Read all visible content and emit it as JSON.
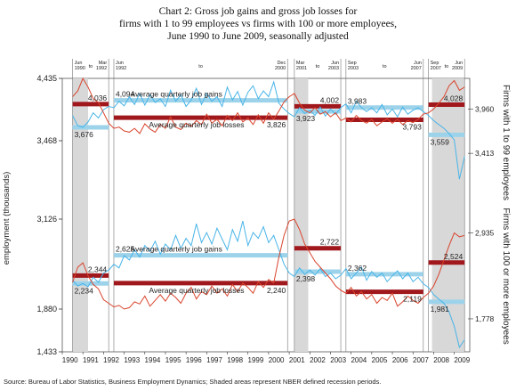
{
  "title": {
    "line1": "Chart 2: Gross job gains and gross job losses for",
    "line2": "firms with 1 to 99 employees vs firms with 100 or more employees,",
    "line3": "June 1990 to June 2009, seasonally adjusted"
  },
  "source": "Source: Bureau of Labor Statistics, Business Employment Dynamics; Shaded areas represent NBER defined recession periods.",
  "colors": {
    "gains": "#48b4e8",
    "losses": "#d9442c",
    "gains_avg": "#9dd3ea",
    "losses_avg": "#a0171c",
    "recession": "#d8d8d8"
  },
  "chart_data": {
    "type": "line",
    "ylabel": "employment (thousands)",
    "xlim": [
      1990.0,
      2009.75
    ],
    "ylim": [
      1433,
      4435
    ],
    "y_ticks": [
      1433,
      1880,
      3126,
      3468,
      4435
    ],
    "x_ticks": [
      "1990",
      "1991",
      "1992",
      "1993",
      "1994",
      "1995",
      "1996",
      "1997",
      "1998",
      "1999",
      "2000",
      "2001",
      "2002",
      "2003",
      "2004",
      "2005",
      "2006",
      "2007",
      "2008",
      "2009"
    ],
    "recessions": [
      [
        1990.5,
        1991.25
      ],
      [
        2001.25,
        2001.92
      ],
      [
        2007.92,
        2009.5
      ]
    ],
    "period_labels": [
      {
        "from": "Jun 1990",
        "to": "Mar 1992",
        "t0": 1990.5,
        "t1": 1992.25
      },
      {
        "from": "Jun 1992",
        "to": "Dec 2000",
        "t0": 1992.5,
        "t1": 2000.92
      },
      {
        "from": "Mar 2001",
        "to": "Jun 2003",
        "t0": 2001.25,
        "t1": 2003.5
      },
      {
        "from": "Sep 2003",
        "to": "Jun 2007",
        "t0": 2003.75,
        "t1": 2007.5
      },
      {
        "from": "Sep 2007",
        "to": "Jun 2009",
        "t0": 2007.75,
        "t1": 2009.5
      }
    ],
    "to_word": "to",
    "panels": [
      {
        "name": "Firms with 1 to 99 employees",
        "gains_label": "Average quarterly job gains",
        "losses_label": "Average quarterly job losses",
        "gains": {
          "x": [
            1990.5,
            1990.75,
            1991.0,
            1991.25,
            1991.5,
            1991.75,
            1992.0,
            1992.25,
            1992.5,
            1992.75,
            1993.0,
            1993.25,
            1993.5,
            1993.75,
            1994.0,
            1994.25,
            1994.5,
            1994.75,
            1995.0,
            1995.25,
            1995.5,
            1995.75,
            1996.0,
            1996.25,
            1996.5,
            1996.75,
            1997.0,
            1997.25,
            1997.5,
            1997.75,
            1998.0,
            1998.25,
            1998.5,
            1998.75,
            1999.0,
            1999.25,
            1999.5,
            1999.75,
            2000.0,
            2000.25,
            2000.5,
            2000.75,
            2001.0,
            2001.25,
            2001.5,
            2001.75,
            2002.0,
            2002.25,
            2002.5,
            2002.75,
            2003.0,
            2003.25,
            2003.5,
            2003.75,
            2004.0,
            2004.25,
            2004.5,
            2004.75,
            2005.0,
            2005.25,
            2005.5,
            2005.75,
            2006.0,
            2006.25,
            2006.5,
            2006.75,
            2007.0,
            2007.25,
            2007.5,
            2007.75,
            2008.0,
            2008.25,
            2008.5,
            2008.75,
            2009.0,
            2009.25,
            2009.5
          ],
          "y": [
            3860,
            3700,
            3676,
            3760,
            3900,
            3820,
            3950,
            4000,
            3980,
            4080,
            4010,
            4150,
            4030,
            4200,
            4020,
            4180,
            4060,
            4120,
            4000,
            4250,
            4080,
            4180,
            4000,
            4100,
            4280,
            4030,
            4200,
            4080,
            4150,
            4000,
            4300,
            4100,
            4230,
            4020,
            4220,
            4320,
            4120,
            4240,
            4150,
            4380,
            4050,
            3960,
            3890,
            3840,
            3980,
            3890,
            3940,
            3860,
            3990,
            3850,
            3960,
            3880,
            3980,
            4040,
            3900,
            4080,
            3980,
            3920,
            3980,
            3900,
            4030,
            3870,
            3960,
            3840,
            3990,
            3880,
            3940,
            3980,
            3920,
            3860,
            3780,
            3720,
            3660,
            3580,
            3480,
            3300,
            3400
          ]
        },
        "losses": {
          "x": [
            1990.5,
            1990.75,
            1991.0,
            1991.25,
            1991.5,
            1991.75,
            1992.0,
            1992.25,
            1992.5,
            1992.75,
            1993.0,
            1993.25,
            1993.5,
            1993.75,
            1994.0,
            1994.25,
            1994.5,
            1994.75,
            1995.0,
            1995.25,
            1995.5,
            1995.75,
            1996.0,
            1996.25,
            1996.5,
            1996.75,
            1997.0,
            1997.25,
            1997.5,
            1997.75,
            1998.0,
            1998.25,
            1998.5,
            1998.75,
            1999.0,
            1999.25,
            1999.5,
            1999.75,
            2000.0,
            2000.25,
            2000.5,
            2000.75,
            2001.0,
            2001.25,
            2001.5,
            2001.75,
            2002.0,
            2002.25,
            2002.5,
            2002.75,
            2003.0,
            2003.25,
            2003.5,
            2003.75,
            2004.0,
            2004.25,
            2004.5,
            2004.75,
            2005.0,
            2005.25,
            2005.5,
            2005.75,
            2006.0,
            2006.25,
            2006.5,
            2006.75,
            2007.0,
            2007.25,
            2007.5,
            2007.75,
            2008.0,
            2008.25,
            2008.5,
            2008.75,
            2009.0,
            2009.25,
            2009.5
          ],
          "y": [
            4150,
            4240,
            4435,
            4300,
            4120,
            4060,
            3900,
            3740,
            3660,
            3680,
            3620,
            3600,
            3660,
            3580,
            3730,
            3650,
            3600,
            3720,
            3660,
            3840,
            3680,
            3640,
            3740,
            3690,
            3780,
            3720,
            3880,
            3740,
            3800,
            3700,
            3860,
            3780,
            3900,
            3760,
            3820,
            3720,
            3870,
            3740,
            3900,
            3800,
            3930,
            4070,
            4150,
            4200,
            4050,
            3940,
            3900,
            3980,
            3880,
            3920,
            3840,
            3900,
            3780,
            3820,
            3760,
            3860,
            3780,
            3740,
            3800,
            3700,
            3760,
            3810,
            3740,
            3800,
            3720,
            3780,
            3750,
            3800,
            3880,
            3900,
            3960,
            4050,
            4150,
            4320,
            4400,
            4250,
            4300
          ]
        },
        "avg_gains": [
          {
            "t0": 1990.5,
            "t1": 1992.25,
            "value": 3676,
            "label": "3,676"
          },
          {
            "t0": 1992.5,
            "t1": 2000.92,
            "value": 4094,
            "label": "4,094"
          },
          {
            "t0": 2001.25,
            "t1": 2003.5,
            "value": 3923,
            "label": "3,923"
          },
          {
            "t0": 2003.75,
            "t1": 2007.5,
            "value": 3983,
            "label": "3,983"
          },
          {
            "t0": 2007.75,
            "t1": 2009.5,
            "value": 3559,
            "label": "3,559"
          }
        ],
        "avg_losses": [
          {
            "t0": 1990.5,
            "t1": 1992.25,
            "value": 4036,
            "label": "4,036"
          },
          {
            "t0": 1992.5,
            "t1": 2000.92,
            "value": 3826,
            "label": "3,826"
          },
          {
            "t0": 2001.25,
            "t1": 2003.5,
            "value": 4002,
            "label": "4,002"
          },
          {
            "t0": 2003.75,
            "t1": 2007.5,
            "value": 3793,
            "label": "3,793"
          },
          {
            "t0": 2007.75,
            "t1": 2009.5,
            "value": 4028,
            "label": "4,028"
          }
        ],
        "end_labels": [
          {
            "value": 3960,
            "label": "3,960",
            "series": "losses"
          },
          {
            "value": 3413,
            "label": "3,413",
            "series": "gains"
          }
        ]
      },
      {
        "name": "Firms with 100 or more employees",
        "gains_label": "Average quarterly job gains",
        "losses_label": "Average quarterly job losses",
        "gains": {
          "x": [
            1990.5,
            1990.75,
            1991.0,
            1991.25,
            1991.5,
            1991.75,
            1992.0,
            1992.25,
            1992.5,
            1992.75,
            1993.0,
            1993.25,
            1993.5,
            1993.75,
            1994.0,
            1994.25,
            1994.5,
            1994.75,
            1995.0,
            1995.25,
            1995.5,
            1995.75,
            1996.0,
            1996.25,
            1996.5,
            1996.75,
            1997.0,
            1997.25,
            1997.5,
            1997.75,
            1998.0,
            1998.25,
            1998.5,
            1998.75,
            1999.0,
            1999.25,
            1999.5,
            1999.75,
            2000.0,
            2000.25,
            2000.5,
            2000.75,
            2001.0,
            2001.25,
            2001.5,
            2001.75,
            2002.0,
            2002.25,
            2002.5,
            2002.75,
            2003.0,
            2003.25,
            2003.5,
            2003.75,
            2004.0,
            2004.25,
            2004.5,
            2004.75,
            2005.0,
            2005.25,
            2005.5,
            2005.75,
            2006.0,
            2006.25,
            2006.5,
            2006.75,
            2007.0,
            2007.25,
            2007.5,
            2007.75,
            2008.0,
            2008.25,
            2008.5,
            2008.75,
            2009.0,
            2009.25,
            2009.5
          ],
          "y": [
            2280,
            2200,
            2234,
            2190,
            2320,
            2250,
            2380,
            2420,
            2500,
            2450,
            2620,
            2560,
            2700,
            2600,
            2760,
            2680,
            2820,
            2640,
            2780,
            2700,
            2900,
            2720,
            2860,
            2760,
            3060,
            2800,
            2940,
            2780,
            3000,
            2850,
            2700,
            2980,
            2820,
            3100,
            2760,
            2940,
            2860,
            3020,
            2800,
            2900,
            2700,
            2500,
            2380,
            2330,
            2450,
            2360,
            2420,
            2350,
            2440,
            2330,
            2380,
            2300,
            2350,
            2440,
            2300,
            2380,
            2460,
            2280,
            2400,
            2320,
            2380,
            2260,
            2340,
            2410,
            2300,
            2380,
            2260,
            2320,
            2230,
            2180,
            2080,
            2020,
            1960,
            1850,
            1700,
            1480,
            1560
          ]
        },
        "losses": {
          "x": [
            1990.5,
            1990.75,
            1991.0,
            1991.25,
            1991.5,
            1991.75,
            1992.0,
            1992.25,
            1992.5,
            1992.75,
            1993.0,
            1993.25,
            1993.5,
            1993.75,
            1994.0,
            1994.25,
            1994.5,
            1994.75,
            1995.0,
            1995.25,
            1995.5,
            1995.75,
            1996.0,
            1996.25,
            1996.5,
            1996.75,
            1997.0,
            1997.25,
            1997.5,
            1997.75,
            1998.0,
            1998.25,
            1998.5,
            1998.75,
            1999.0,
            1999.25,
            1999.5,
            1999.75,
            2000.0,
            2000.25,
            2000.5,
            2000.75,
            2001.0,
            2001.25,
            2001.5,
            2001.75,
            2002.0,
            2002.25,
            2002.5,
            2002.75,
            2003.0,
            2003.25,
            2003.5,
            2003.75,
            2004.0,
            2004.25,
            2004.5,
            2004.75,
            2005.0,
            2005.25,
            2005.5,
            2005.75,
            2006.0,
            2006.25,
            2006.5,
            2006.75,
            2007.0,
            2007.25,
            2007.5,
            2007.75,
            2008.0,
            2008.25,
            2008.5,
            2008.75,
            2009.0,
            2009.25,
            2009.5
          ],
          "y": [
            2250,
            2460,
            2520,
            2340,
            2220,
            2160,
            2010,
            1960,
            1910,
            1930,
            1880,
            1900,
            1980,
            1950,
            2060,
            1920,
            2000,
            2080,
            1990,
            2100,
            2040,
            1960,
            2100,
            2180,
            2020,
            2120,
            2080,
            2200,
            2100,
            2160,
            2060,
            2220,
            2120,
            2240,
            2180,
            2100,
            2260,
            2180,
            2290,
            2240,
            2600,
            2900,
            3100,
            3126,
            2980,
            2780,
            2660,
            2540,
            2460,
            2380,
            2300,
            2200,
            2140,
            2100,
            2180,
            2060,
            2120,
            2020,
            2080,
            1960,
            2040,
            2000,
            2100,
            1920,
            1980,
            2060,
            2000,
            1960,
            2040,
            2100,
            2200,
            2360,
            2560,
            2760,
            2935,
            2880,
            2900
          ]
        },
        "avg_gains": [
          {
            "t0": 1990.5,
            "t1": 1992.25,
            "value": 2234,
            "label": "2,234"
          },
          {
            "t0": 1992.5,
            "t1": 2000.92,
            "value": 2625,
            "label": "2,625"
          },
          {
            "t0": 2001.25,
            "t1": 2003.5,
            "value": 2398,
            "label": "2,398"
          },
          {
            "t0": 2003.75,
            "t1": 2007.5,
            "value": 2362,
            "label": "2,362"
          },
          {
            "t0": 2007.75,
            "t1": 2009.5,
            "value": 1981,
            "label": "1,981"
          }
        ],
        "avg_losses": [
          {
            "t0": 1990.5,
            "t1": 1992.25,
            "value": 2344,
            "label": "2,344"
          },
          {
            "t0": 1992.5,
            "t1": 2000.92,
            "value": 2240,
            "label": "2,240"
          },
          {
            "t0": 2001.25,
            "t1": 2003.5,
            "value": 2722,
            "label": "2,722"
          },
          {
            "t0": 2003.75,
            "t1": 2007.5,
            "value": 2119,
            "label": "2,119"
          },
          {
            "t0": 2007.75,
            "t1": 2009.5,
            "value": 2524,
            "label": "2,524"
          }
        ],
        "end_labels": [
          {
            "value": 2935,
            "label": "2,935",
            "series": "losses"
          },
          {
            "value": 1778,
            "label": "1,778",
            "series": "gains"
          }
        ]
      }
    ]
  }
}
